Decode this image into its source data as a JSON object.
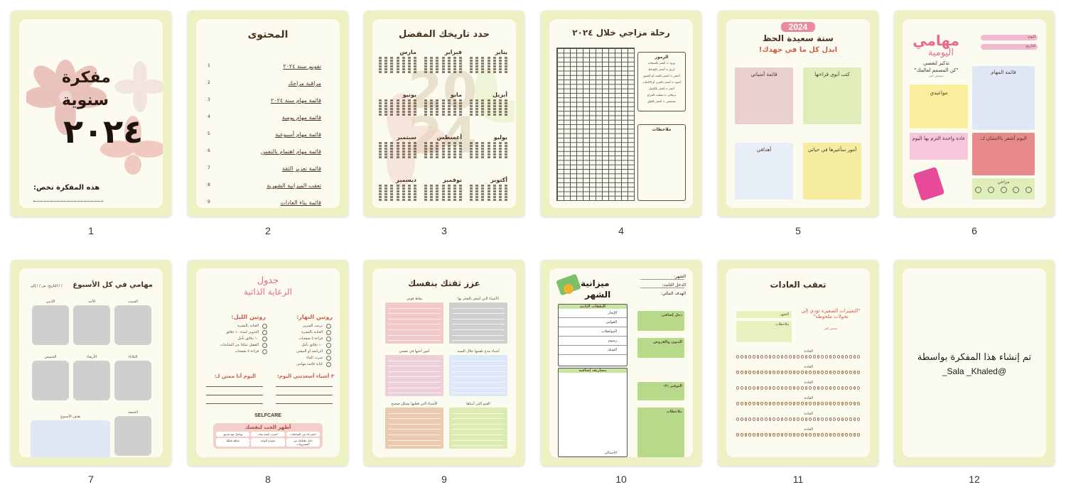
{
  "pages": [
    {
      "num": "1",
      "cover": {
        "title1": "مفكرة",
        "title2": "سنوية",
        "year": "٢٠٢٤",
        "owner_label": "هذه المفكرة تخص:"
      }
    },
    {
      "num": "2",
      "title": "المحتوى",
      "items": [
        {
          "n": "1",
          "t": "تقويم سنة ٢٠٢٤"
        },
        {
          "n": "2",
          "t": "مراقبة مزاجك"
        },
        {
          "n": "3",
          "t": "قائمة مهام سنة ٢٠٢٤"
        },
        {
          "n": "4",
          "t": "قائمة مهام يومية"
        },
        {
          "n": "5",
          "t": "قائمة مهام أسبوعية"
        },
        {
          "n": "6",
          "t": "قائمة مهام اهتمام بالنفس"
        },
        {
          "n": "7",
          "t": "قائمة تعزيز الثقة"
        },
        {
          "n": "8",
          "t": "تعقب الميزانية الشهرية"
        },
        {
          "n": "9",
          "t": "قائمة بناء العادات"
        }
      ]
    },
    {
      "num": "3",
      "title": "حدد تاريخك المفضل",
      "months": [
        "يناير",
        "فبراير",
        "مارس",
        "أبريل",
        "مايو",
        "يونيو",
        "يوليو",
        "أغسطس",
        "سبتمبر",
        "أكتوبر",
        "نوفمبر",
        "ديسمبر"
      ],
      "watermark": "2024"
    },
    {
      "num": "4",
      "title": "رحلة مزاجي خلال ٢٠٢٤",
      "legend_title": "الرموز",
      "legend": [
        "ورود = أشعر بالسعادة",
        "أزرق = أشعر بالنشاط",
        "أخضر = أشعر بالتعب أو الضيق",
        "أسود = أشعر بالحزن أو الاكتئاب",
        "أحمر = أشعر بالكسل",
        "برتقالي = متقلب المزاج",
        "بنفسجي = أشعر بالقلق"
      ],
      "notes_label": "ملاحظات"
    },
    {
      "num": "5",
      "year_badge": "2024",
      "title": "سنة سعيدة الحظ",
      "subtitle": "ابذل كل ما في جهدك!",
      "boxes": [
        "كتب أنوي قراءتها",
        "قائمة أمنياتي",
        "أمور سأغيرها في حياتي",
        "أهدافي"
      ]
    },
    {
      "num": "6",
      "title1": "مهامي",
      "title2": "اليومية",
      "day_label": "اليوم:",
      "date_label": "التاريخ:",
      "reminder_title": "تذكير لنفسي",
      "reminder_quote": "\"كن المصمم لعالمك\"",
      "reminder_author": "ديسيتين أسر",
      "tasks_label": "قائمة المهام",
      "appointments_label": "مواعيدي",
      "grateful_label": "اليوم أشعر بالامتنان لـ:",
      "habit_label": "عادة واحدة التزم بها اليوم",
      "mood_label": "مزاجي",
      "moods": [
        "سعيد",
        "عادي",
        "قلق",
        "حزين",
        "غاضب"
      ]
    },
    {
      "num": "7",
      "title": "مهامي في كل الأسبوع",
      "date_label": "التاريخ: من / / إلى / /",
      "days": [
        "السبت",
        "الأحد",
        "الإثنين",
        "الثلاثاء",
        "الأربعاء",
        "الخميس",
        "الجمعة"
      ],
      "goal_label": "هدف الأسبوع"
    },
    {
      "num": "8",
      "title1": "جدول",
      "title2": "الرعاية الذاتية",
      "day_routine": "روتين النهار:",
      "night_routine": "روتين الليل:",
      "day_items": [
        "ترتيب السرير",
        "العناية بالبشرة",
        "قراءة ٥ صفحات",
        "١٠ دقائق تأمل",
        "الرياضة أو المشي",
        "شرب الماء",
        "كتابة قائمة مهامي"
      ],
      "night_items": [
        "العناية بالبشرة",
        "التدوين لمدة ١٠ دقائق",
        "١٠ دقائق تأمل",
        "الفصل تمامًا عن الشاشات",
        "قراءة ٥ صفحات"
      ],
      "happy_label": "٣ أشياء أسعدتني اليوم:",
      "grateful_label": "اليوم أنا ممتن لـ:",
      "brand": "SELFCARE",
      "love_title": "أظهر الحب لنفسك",
      "love_items": [
        "استرخاء من الشاشات",
        "اشرب كمية مياه",
        "تواصل مع صديق",
        "دليل طعامك من المشروبات",
        "نموذج الوجه",
        "شاهد فيلمًا"
      ]
    },
    {
      "num": "9",
      "title": "عزز ثقتك بنفسك",
      "boxes": [
        "الأشياء التي أشعر بالفخر بها",
        "نقاط قوتي",
        "أشياء مدح تلقيتها خلال السنة",
        "أمور أحبها في نفسي",
        "القيم التي أتبناها",
        "الأشياء التي فعلتها بشكل صحيح"
      ]
    },
    {
      "num": "10",
      "title1": "ميزانية",
      "title2": "الشهر",
      "month_label": "الشهر:",
      "income_label": "الدخل الثابت:",
      "goal_label": "الهدف المالي:",
      "fixed_label": "النفقات الثابتة",
      "fixed_items": [
        "الإيجار",
        "الفواتير",
        "المواصلات",
        "رسوم",
        "الشيك"
      ],
      "extra_label": "مصاريف إضافية",
      "total_label": "الإجمالي",
      "side": [
        "دخل إضافي",
        "الديون والقروض",
        "التوفير :٢٪",
        "ملاحظات"
      ]
    },
    {
      "num": "11",
      "title": "تعقب العادات",
      "quote": "\"التغييرات الصغيرة تؤدي إلى تحولات ملحوظة\"",
      "quote_author": "جيمس كلير",
      "month_label": "الشهر",
      "notes_label": "ملاحظات",
      "habit_label": "العادة:"
    },
    {
      "num": "12",
      "line1": "تم إنشاء هذا المفكرة بواسطة",
      "line2": "@Sala _Khaled_"
    }
  ],
  "colors": {
    "card": "#eef1c4",
    "paper": "#fbfcef",
    "brown": "#4a3222",
    "pink": "#e86a8a",
    "flower": "#e8bdb6"
  }
}
